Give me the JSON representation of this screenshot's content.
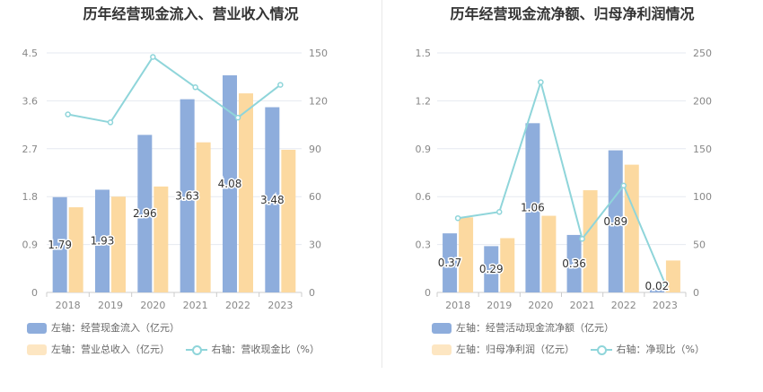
{
  "chart_data": [
    {
      "type": "bar+line",
      "title": "历年经营现金流入、营业收入情况",
      "categories": [
        "2018",
        "2019",
        "2020",
        "2021",
        "2022",
        "2023"
      ],
      "left_axis": {
        "min": 0,
        "max": 4.5,
        "ticks": [
          "0",
          "0.9",
          "1.8",
          "2.7",
          "3.6",
          "4.5"
        ]
      },
      "right_axis": {
        "min": 0,
        "max": 150,
        "ticks": [
          "0",
          "30",
          "60",
          "90",
          "120",
          "150"
        ]
      },
      "series": [
        {
          "name": "左轴：经营现金流入（亿元）",
          "kind": "bar",
          "axis": "left",
          "color": "#8eaddc",
          "values": [
            1.79,
            1.93,
            2.96,
            3.63,
            4.08,
            3.48
          ],
          "labels": [
            "1.79",
            "1.93",
            "2.96",
            "3.63",
            "4.08",
            "3.48"
          ]
        },
        {
          "name": "左轴：营业总收入（亿元）",
          "kind": "bar",
          "axis": "left",
          "color": "#fcd9a0",
          "values": [
            1.6,
            1.8,
            1.99,
            2.82,
            3.74,
            2.68
          ]
        },
        {
          "name": "右轴：营收现金比（%）",
          "kind": "line",
          "axis": "right",
          "color": "#8fd5da",
          "values": [
            111.5,
            106.5,
            147.5,
            128.5,
            109.5,
            130.0
          ]
        }
      ],
      "legend": "bottom"
    },
    {
      "type": "bar+line",
      "title": "历年经营现金流净额、归母净利润情况",
      "categories": [
        "2018",
        "2019",
        "2020",
        "2021",
        "2022",
        "2023"
      ],
      "left_axis": {
        "min": 0,
        "max": 1.5,
        "ticks": [
          "0",
          "0.3",
          "0.6",
          "0.9",
          "1.2",
          "1.5"
        ]
      },
      "right_axis": {
        "min": 0,
        "max": 250,
        "ticks": [
          "0",
          "50",
          "100",
          "150",
          "200",
          "250"
        ]
      },
      "series": [
        {
          "name": "左轴：经营活动现金流净额（亿元）",
          "kind": "bar",
          "axis": "left",
          "color": "#8eaddc",
          "values": [
            0.37,
            0.29,
            1.06,
            0.36,
            0.89,
            0.02
          ],
          "labels": [
            "0.37",
            "0.29",
            "1.06",
            "0.36",
            "0.89",
            "0.02"
          ]
        },
        {
          "name": "左轴：归母净利润（亿元）",
          "kind": "bar",
          "axis": "left",
          "color": "#fcd9a0",
          "values": [
            0.47,
            0.34,
            0.48,
            0.64,
            0.8,
            0.2
          ]
        },
        {
          "name": "右轴：净现比（%）",
          "kind": "line",
          "axis": "right",
          "color": "#8fd5da",
          "values": [
            77.5,
            84.0,
            219.5,
            56.0,
            111.5,
            9.0
          ]
        }
      ],
      "legend": "bottom"
    }
  ]
}
